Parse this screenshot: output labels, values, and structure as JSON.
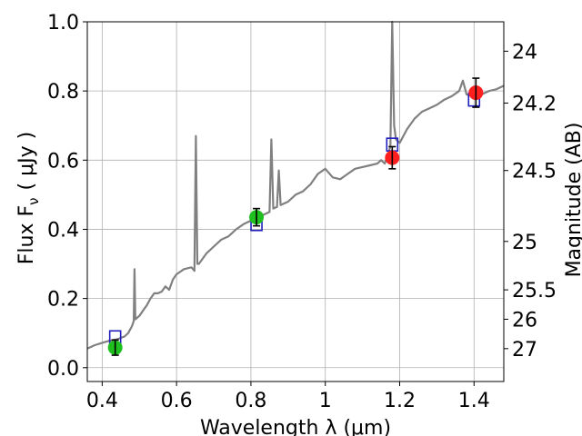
{
  "chart_data": {
    "type": "scatter",
    "title": "",
    "xlabel": "Wavelength  λ (μm)",
    "ylabel": "Flux  F",
    "ylabel_sub": "ν",
    "ylabel_unit": "( μJy )",
    "y2label": "Magnitude (AB)",
    "xlim": [
      0.36,
      1.48
    ],
    "ylim": [
      -0.04,
      1.0
    ],
    "grid": true,
    "x_ticks": [
      {
        "v": 0.4,
        "label": "0.4"
      },
      {
        "v": 0.6,
        "label": "0.6"
      },
      {
        "v": 0.8,
        "label": "0.8"
      },
      {
        "v": 1.0,
        "label": "1"
      },
      {
        "v": 1.2,
        "label": "1.2"
      },
      {
        "v": 1.4,
        "label": "1.4"
      }
    ],
    "y_ticks": [
      {
        "v": 0.0,
        "label": "0.0"
      },
      {
        "v": 0.2,
        "label": "0.2"
      },
      {
        "v": 0.4,
        "label": "0.4"
      },
      {
        "v": 0.6,
        "label": "0.6"
      },
      {
        "v": 0.8,
        "label": "0.8"
      },
      {
        "v": 1.0,
        "label": "1.0"
      }
    ],
    "y2_ticks": [
      {
        "mag": 24,
        "label": "24"
      },
      {
        "mag": 24.2,
        "label": "24.2"
      },
      {
        "mag": 24.5,
        "label": "24.5"
      },
      {
        "mag": 25,
        "label": "25"
      },
      {
        "mag": 25.5,
        "label": "25.5"
      },
      {
        "mag": 26,
        "label": "26"
      },
      {
        "mag": 27,
        "label": "27"
      }
    ],
    "series": [
      {
        "kind": "model-spectrum",
        "color": "#808080",
        "points": [
          [
            0.36,
            0.055
          ],
          [
            0.38,
            0.065
          ],
          [
            0.4,
            0.072
          ],
          [
            0.42,
            0.078
          ],
          [
            0.44,
            0.082
          ],
          [
            0.46,
            0.09
          ],
          [
            0.47,
            0.1
          ],
          [
            0.48,
            0.12
          ],
          [
            0.485,
            0.135
          ],
          [
            0.487,
            0.285
          ],
          [
            0.489,
            0.14
          ],
          [
            0.5,
            0.15
          ],
          [
            0.51,
            0.165
          ],
          [
            0.52,
            0.18
          ],
          [
            0.53,
            0.2
          ],
          [
            0.54,
            0.215
          ],
          [
            0.55,
            0.215
          ],
          [
            0.56,
            0.22
          ],
          [
            0.57,
            0.235
          ],
          [
            0.58,
            0.225
          ],
          [
            0.59,
            0.255
          ],
          [
            0.6,
            0.27
          ],
          [
            0.62,
            0.285
          ],
          [
            0.64,
            0.29
          ],
          [
            0.648,
            0.28
          ],
          [
            0.652,
            0.67
          ],
          [
            0.656,
            0.3
          ],
          [
            0.66,
            0.3
          ],
          [
            0.68,
            0.33
          ],
          [
            0.7,
            0.35
          ],
          [
            0.72,
            0.37
          ],
          [
            0.74,
            0.38
          ],
          [
            0.76,
            0.4
          ],
          [
            0.78,
            0.415
          ],
          [
            0.8,
            0.425
          ],
          [
            0.82,
            0.435
          ],
          [
            0.84,
            0.445
          ],
          [
            0.85,
            0.45
          ],
          [
            0.855,
            0.66
          ],
          [
            0.86,
            0.46
          ],
          [
            0.87,
            0.465
          ],
          [
            0.875,
            0.57
          ],
          [
            0.88,
            0.47
          ],
          [
            0.9,
            0.48
          ],
          [
            0.92,
            0.5
          ],
          [
            0.94,
            0.51
          ],
          [
            0.96,
            0.53
          ],
          [
            0.98,
            0.56
          ],
          [
            1.0,
            0.575
          ],
          [
            1.02,
            0.55
          ],
          [
            1.04,
            0.545
          ],
          [
            1.06,
            0.56
          ],
          [
            1.08,
            0.575
          ],
          [
            1.1,
            0.58
          ],
          [
            1.12,
            0.585
          ],
          [
            1.14,
            0.59
          ],
          [
            1.15,
            0.6
          ],
          [
            1.16,
            0.59
          ],
          [
            1.17,
            0.62
          ],
          [
            1.175,
            0.64
          ],
          [
            1.18,
            1.0
          ],
          [
            1.185,
            0.7
          ],
          [
            1.19,
            0.66
          ],
          [
            1.2,
            0.65
          ],
          [
            1.22,
            0.69
          ],
          [
            1.24,
            0.72
          ],
          [
            1.26,
            0.74
          ],
          [
            1.28,
            0.75
          ],
          [
            1.3,
            0.76
          ],
          [
            1.32,
            0.775
          ],
          [
            1.34,
            0.785
          ],
          [
            1.36,
            0.8
          ],
          [
            1.37,
            0.83
          ],
          [
            1.38,
            0.79
          ],
          [
            1.4,
            0.785
          ],
          [
            1.42,
            0.79
          ],
          [
            1.44,
            0.8
          ],
          [
            1.46,
            0.805
          ],
          [
            1.48,
            0.815
          ]
        ]
      },
      {
        "kind": "model-photometry",
        "color": "#1f1fbf",
        "points": [
          [
            0.435,
            0.088
          ],
          [
            0.815,
            0.415
          ],
          [
            1.18,
            0.645
          ],
          [
            1.4,
            0.775
          ]
        ]
      },
      {
        "kind": "observed",
        "color": "#1fbf1f",
        "points": [
          {
            "x": 0.435,
            "y": 0.058,
            "err": 0.022
          },
          {
            "x": 0.815,
            "y": 0.435,
            "err": 0.025
          }
        ]
      },
      {
        "kind": "observed",
        "color": "#ff1f1f",
        "points": [
          {
            "x": 1.18,
            "y": 0.607,
            "err": 0.032
          },
          {
            "x": 1.405,
            "y": 0.795,
            "err": 0.042
          }
        ]
      }
    ]
  }
}
